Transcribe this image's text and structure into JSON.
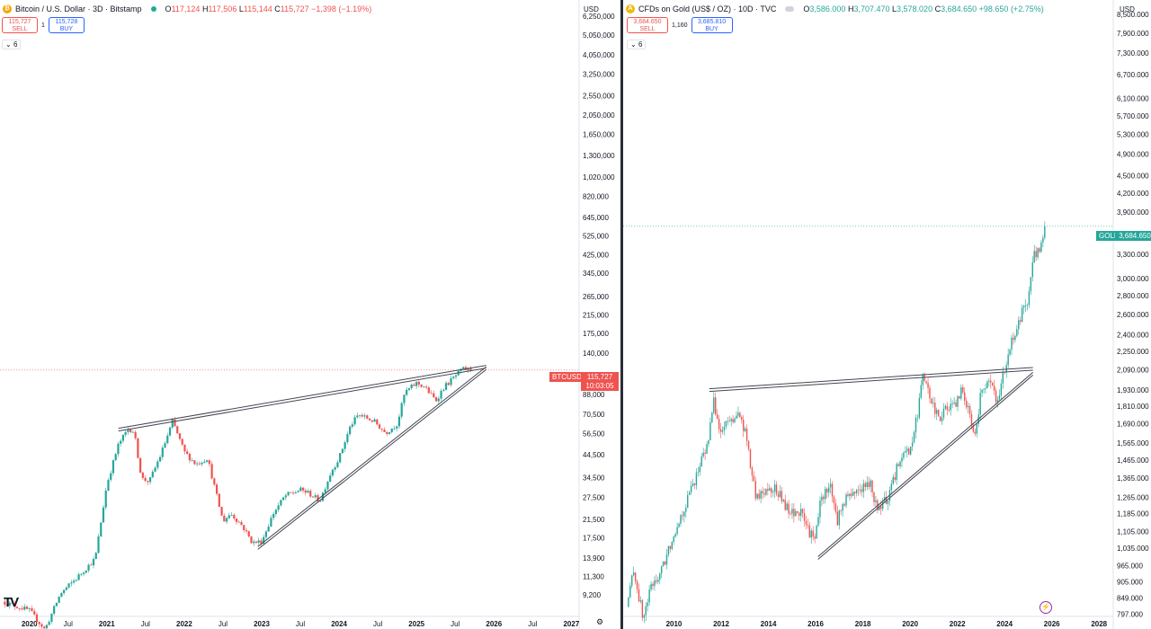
{
  "left": {
    "symbol_icon": "bitcoin-icon",
    "title": "Bitcoin / U.S. Dollar · 3D · Bitstamp",
    "ohlc": {
      "o_label": "O",
      "o": "117,124",
      "h_label": "H",
      "h": "117,506",
      "l_label": "L",
      "l": "115,144",
      "c_label": "C",
      "c": "115,727",
      "change": "−1,398 (−1.19%)"
    },
    "sell_price": "115,727",
    "sell_label": "SELL",
    "spread": "1",
    "buy_price": "115,728",
    "buy_label": "BUY",
    "indicators_count": "6",
    "currency": "USD",
    "price_tag_symbol": "BTCUSD",
    "price_tag_value": "115,727",
    "price_tag_countdown": "10:03:05",
    "logo_text": "TV",
    "colors": {
      "up": "#26a69a",
      "down": "#ef5350",
      "trend": "#434651",
      "tag": "#ef5350"
    }
  },
  "right": {
    "symbol_icon": "gold-icon",
    "title": "CFDs on Gold (US$ / OZ) · 10D · TVC",
    "ohlc": {
      "o_label": "O",
      "o": "3,586.000",
      "h_label": "H",
      "h": "3,707.470",
      "l_label": "L",
      "l": "3,578.020",
      "c_label": "C",
      "c": "3,684.650",
      "change": "+98.650 (+2.75%)"
    },
    "sell_price": "3,684.650",
    "sell_label": "SELL",
    "spread": "1,160",
    "buy_price": "3,685.810",
    "buy_label": "BUY",
    "indicators_count": "6",
    "currency": "USD",
    "price_tag_symbol": "GOLD",
    "price_tag_value": "3,684.650",
    "colors": {
      "up": "#26a69a",
      "down": "#ef5350",
      "trend": "#434651",
      "tag": "#26a69a"
    }
  },
  "chart_data": [
    {
      "type": "candlestick",
      "title": "Bitcoin / U.S. Dollar · 3D · Bitstamp",
      "scale": "log",
      "x_axis_labels": [
        "2020",
        "Jul",
        "2021",
        "Jul",
        "2022",
        "Jul",
        "2023",
        "Jul",
        "2024",
        "Jul",
        "2025",
        "Jul",
        "2026",
        "Jul",
        "2027"
      ],
      "x_axis_years": [
        2020,
        2020.5,
        2021,
        2021.5,
        2022,
        2022.5,
        2023,
        2023.5,
        2024,
        2024.5,
        2025,
        2025.5,
        2026,
        2026.5,
        2027
      ],
      "y_ticks": [
        6250000,
        5050000,
        4050000,
        3250000,
        2550000,
        2050000,
        1650000,
        1300000,
        1020000,
        820000,
        645000,
        525000,
        425000,
        345000,
        265000,
        215000,
        175000,
        140000,
        88000,
        70500,
        56500,
        44500,
        34500,
        27500,
        21500,
        17500,
        13900,
        11300,
        9200
      ],
      "y_tick_labels": [
        "6,250,000",
        "5,050,000",
        "4,050,000",
        "3,250,000",
        "2,550,000",
        "2,050,000",
        "1,650,000",
        "1,300,000",
        "1,020,000",
        "820,000",
        "645,000",
        "525,000",
        "425,000",
        "345,000",
        "265,000",
        "215,000",
        "175,000",
        "140,000",
        "88,000",
        "70,500",
        "56,500",
        "44,500",
        "34,500",
        "27,500",
        "21,500",
        "17,500",
        "13,900",
        "11,300",
        "9,200"
      ],
      "ylim": [
        7200,
        7500000
      ],
      "xlim": [
        2019.62,
        2027.1
      ],
      "last_price": 115727,
      "price_path": [
        [
          2019.65,
          8500
        ],
        [
          2020.0,
          7700
        ],
        [
          2020.2,
          6200
        ],
        [
          2020.4,
          9300
        ],
        [
          2020.6,
          11000
        ],
        [
          2020.85,
          13800
        ],
        [
          2021.0,
          32000
        ],
        [
          2021.15,
          50000
        ],
        [
          2021.28,
          60000
        ],
        [
          2021.35,
          58000
        ],
        [
          2021.45,
          34000
        ],
        [
          2021.55,
          33000
        ],
        [
          2021.7,
          45000
        ],
        [
          2021.85,
          65000
        ],
        [
          2022.0,
          46000
        ],
        [
          2022.15,
          40000
        ],
        [
          2022.3,
          43000
        ],
        [
          2022.4,
          30000
        ],
        [
          2022.5,
          21000
        ],
        [
          2022.6,
          23000
        ],
        [
          2022.75,
          20000
        ],
        [
          2022.88,
          16500
        ],
        [
          2023.0,
          16800
        ],
        [
          2023.15,
          23000
        ],
        [
          2023.3,
          28000
        ],
        [
          2023.5,
          30000
        ],
        [
          2023.6,
          29000
        ],
        [
          2023.75,
          26500
        ],
        [
          2023.9,
          37000
        ],
        [
          2024.0,
          43000
        ],
        [
          2024.15,
          62000
        ],
        [
          2024.25,
          70000
        ],
        [
          2024.45,
          65000
        ],
        [
          2024.6,
          57000
        ],
        [
          2024.75,
          63000
        ],
        [
          2024.85,
          90000
        ],
        [
          2025.0,
          100000
        ],
        [
          2025.1,
          96000
        ],
        [
          2025.25,
          82000
        ],
        [
          2025.35,
          95000
        ],
        [
          2025.5,
          108000
        ],
        [
          2025.6,
          117000
        ],
        [
          2025.7,
          115727
        ]
      ],
      "trendlines": [
        {
          "name": "upper",
          "from": [
            2021.15,
            60000
          ],
          "to": [
            2025.9,
            122000
          ]
        },
        {
          "name": "lower",
          "from": [
            2022.95,
            15800
          ],
          "to": [
            2025.9,
            120000
          ]
        }
      ]
    },
    {
      "type": "candlestick",
      "title": "CFDs on Gold (US$ / OZ) · 10D · TVC",
      "scale": "log",
      "x_axis_labels": [
        "2008",
        "2010",
        "2012",
        "2014",
        "2016",
        "2018",
        "2020",
        "2022",
        "2024",
        "2026",
        "2028"
      ],
      "x_axis_years": [
        2008,
        2010,
        2012,
        2014,
        2016,
        2018,
        2020,
        2022,
        2024,
        2026,
        2028
      ],
      "y_ticks": [
        8500,
        7900,
        7300,
        6700,
        6100,
        5700,
        5300,
        4900,
        4500,
        4200,
        3900,
        3300,
        3000,
        2800,
        2600,
        2400,
        2250,
        2090,
        1930,
        1810,
        1690,
        1565,
        1465,
        1365,
        1265,
        1185,
        1105,
        1035,
        965,
        905,
        849,
        797
      ],
      "y_tick_labels": [
        "8,500.000",
        "7,900.000",
        "7,300.000",
        "6,700.000",
        "6,100.000",
        "5,700.000",
        "5,300.000",
        "4,900.000",
        "4,500.000",
        "4,200.000",
        "3,900.000",
        "3,300.000",
        "3,000.000",
        "2,800.000",
        "2,600.000",
        "2,400.000",
        "2,250.000",
        "2,090.000",
        "1,930.000",
        "1,810.000",
        "1,690.000",
        "1,565.000",
        "1,465.000",
        "1,365.000",
        "1,265.000",
        "1,185.000",
        "1,105.000",
        "1,035.000",
        "965.000",
        "905.000",
        "849.000",
        "797.000"
      ],
      "ylim": [
        790,
        9000
      ],
      "xlim": [
        2007.85,
        2028.6
      ],
      "last_price": 3684.65,
      "price_path": [
        [
          2008.0,
          820
        ],
        [
          2008.3,
          950
        ],
        [
          2008.7,
          780
        ],
        [
          2009.0,
          880
        ],
        [
          2009.5,
          950
        ],
        [
          2010.0,
          1100
        ],
        [
          2010.5,
          1230
        ],
        [
          2011.0,
          1400
        ],
        [
          2011.4,
          1550
        ],
        [
          2011.7,
          1850
        ],
        [
          2011.95,
          1620
        ],
        [
          2012.3,
          1700
        ],
        [
          2012.7,
          1750
        ],
        [
          2013.0,
          1650
        ],
        [
          2013.3,
          1380
        ],
        [
          2013.5,
          1250
        ],
        [
          2013.8,
          1300
        ],
        [
          2014.2,
          1320
        ],
        [
          2014.6,
          1250
        ],
        [
          2014.9,
          1180
        ],
        [
          2015.3,
          1200
        ],
        [
          2015.7,
          1110
        ],
        [
          2015.95,
          1060
        ],
        [
          2016.2,
          1240
        ],
        [
          2016.6,
          1340
        ],
        [
          2016.9,
          1150
        ],
        [
          2017.2,
          1250
        ],
        [
          2017.6,
          1290
        ],
        [
          2017.9,
          1310
        ],
        [
          2018.3,
          1330
        ],
        [
          2018.7,
          1190
        ],
        [
          2018.9,
          1240
        ],
        [
          2019.2,
          1300
        ],
        [
          2019.6,
          1500
        ],
        [
          2019.95,
          1520
        ],
        [
          2020.2,
          1650
        ],
        [
          2020.55,
          2030
        ],
        [
          2020.9,
          1850
        ],
        [
          2021.2,
          1720
        ],
        [
          2021.5,
          1800
        ],
        [
          2021.9,
          1800
        ],
        [
          2022.2,
          1950
        ],
        [
          2022.5,
          1750
        ],
        [
          2022.75,
          1640
        ],
        [
          2023.0,
          1900
        ],
        [
          2023.3,
          2000
        ],
        [
          2023.7,
          1850
        ],
        [
          2023.95,
          2050
        ],
        [
          2024.2,
          2300
        ],
        [
          2024.5,
          2400
        ],
        [
          2024.8,
          2700
        ],
        [
          2025.0,
          2750
        ],
        [
          2025.2,
          3300
        ],
        [
          2025.45,
          3350
        ],
        [
          2025.6,
          3420
        ],
        [
          2025.7,
          3684.65
        ]
      ],
      "trendlines": [
        {
          "name": "upper",
          "from": [
            2011.5,
            1940
          ],
          "to": [
            2025.2,
            2110
          ]
        },
        {
          "name": "lower",
          "from": [
            2016.1,
            1000
          ],
          "to": [
            2025.2,
            2070
          ]
        }
      ]
    }
  ]
}
